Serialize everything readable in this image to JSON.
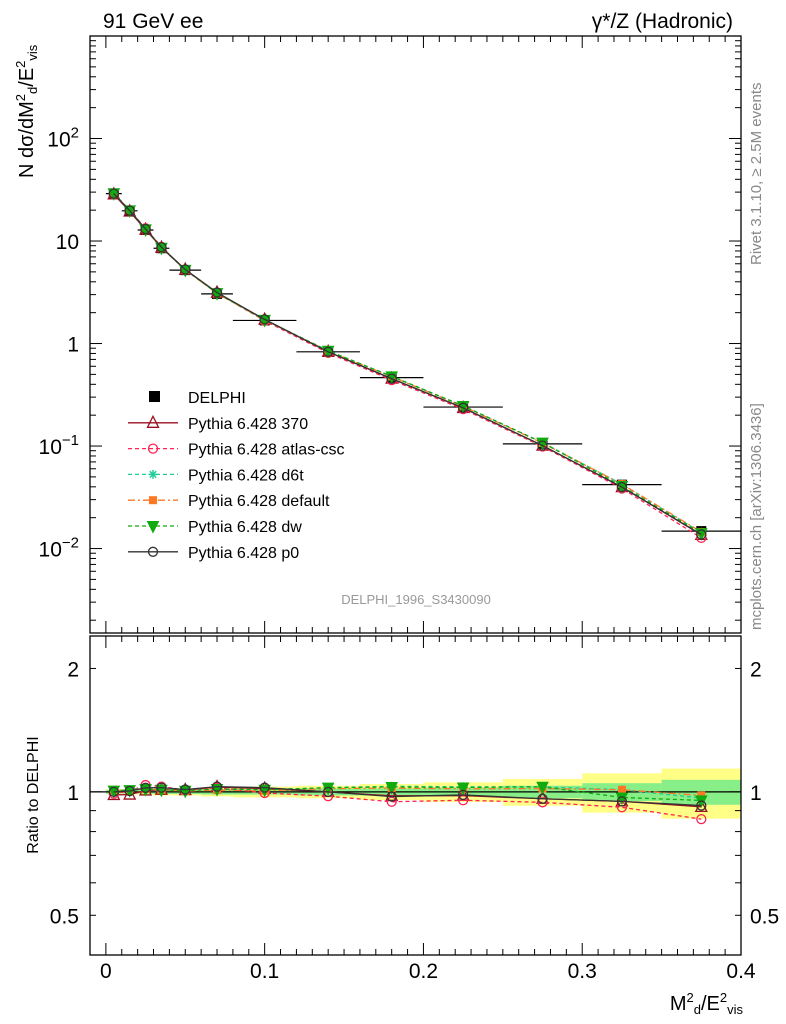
{
  "header": {
    "left_title": "91 GeV ee",
    "right_title": "γ*/Z (Hadronic)"
  },
  "side_text": {
    "rivet": "Rivet 3.1.10, ≥ 2.5M events",
    "mcplots": "mcplots.cern.ch [arXiv:1306.3436]"
  },
  "watermark": "DELPHI_1996_S3430090",
  "chart_data": [
    {
      "type": "line",
      "panel": "main",
      "ylabel": "N dσ/dM²d/E²vis",
      "yscale": "log",
      "ylim": [
        0.0015,
        1000
      ],
      "xlim": [
        -0.01,
        0.4
      ],
      "y_ticks": [
        {
          "value": 100,
          "label": "10",
          "sup": "2"
        },
        {
          "value": 10,
          "label": "10",
          "sup": ""
        },
        {
          "value": 1,
          "label": "1",
          "sup": ""
        },
        {
          "value": 0.1,
          "label": "10",
          "sup": "−1"
        },
        {
          "value": 0.01,
          "label": "10",
          "sup": "−2"
        }
      ],
      "x": [
        0.005,
        0.015,
        0.025,
        0.035,
        0.05,
        0.07,
        0.1,
        0.14,
        0.18,
        0.225,
        0.275,
        0.325,
        0.375
      ],
      "data": {
        "name": "DELPHI",
        "values": [
          29.0,
          19.7,
          12.8,
          8.5,
          5.2,
          3.05,
          1.68,
          0.83,
          0.465,
          0.24,
          0.105,
          0.042,
          0.0148
        ],
        "xerr": [
          0.005,
          0.005,
          0.005,
          0.005,
          0.01,
          0.01,
          0.02,
          0.02,
          0.02,
          0.025,
          0.025,
          0.025,
          0.025
        ]
      },
      "series": [
        {
          "name": "Pythia 6.428 370",
          "color": "#9b1020",
          "dash": "",
          "marker": "triangle-open",
          "values": [
            28.5,
            19.4,
            12.9,
            8.6,
            5.25,
            3.13,
            1.71,
            0.83,
            0.455,
            0.235,
            0.101,
            0.0398,
            0.0136
          ]
        },
        {
          "name": "Pythia 6.428 atlas-csc",
          "color": "#ff2255",
          "dash": "4,3",
          "marker": "circle-open",
          "values": [
            28.7,
            19.8,
            13.3,
            8.75,
            5.25,
            3.12,
            1.67,
            0.81,
            0.44,
            0.229,
            0.099,
            0.0385,
            0.0127
          ]
        },
        {
          "name": "Pythia 6.428 d6t",
          "color": "#22cc99",
          "dash": "4,3",
          "marker": "star",
          "values": [
            29.2,
            19.9,
            13.1,
            8.65,
            5.23,
            3.1,
            1.7,
            0.85,
            0.48,
            0.247,
            0.108,
            0.0425,
            0.0143
          ]
        },
        {
          "name": "Pythia 6.428 default",
          "color": "#ff7722",
          "dash": "7,3,2,3",
          "marker": "square-filled",
          "values": [
            29.3,
            19.9,
            13.0,
            8.6,
            5.22,
            3.08,
            1.69,
            0.845,
            0.475,
            0.244,
            0.107,
            0.0425,
            0.0145
          ]
        },
        {
          "name": "Pythia 6.428 dw",
          "color": "#11aa11",
          "dash": "4,3",
          "marker": "triangle-down-filled",
          "values": [
            29.2,
            19.9,
            13.0,
            8.6,
            5.23,
            3.1,
            1.7,
            0.85,
            0.478,
            0.246,
            0.108,
            0.0407,
            0.0141
          ]
        },
        {
          "name": "Pythia 6.428 p0",
          "color": "#333333",
          "dash": "",
          "marker": "circle-open",
          "values": [
            29.0,
            19.8,
            13.1,
            8.7,
            5.27,
            3.14,
            1.72,
            0.83,
            0.453,
            0.236,
            0.101,
            0.0398,
            0.0137
          ]
        }
      ]
    },
    {
      "type": "line",
      "panel": "ratio",
      "ylabel": "Ratio to DELPHI",
      "xlabel": "M²d/E²vis",
      "yscale": "log",
      "ylim": [
        0.4,
        2.4
      ],
      "xlim": [
        -0.01,
        0.4
      ],
      "y_ticks": [
        {
          "value": 2,
          "label": "2"
        },
        {
          "value": 1,
          "label": "1"
        },
        {
          "value": 0.5,
          "label": "0.5"
        }
      ],
      "x_ticks": [
        {
          "value": 0,
          "label": "0"
        },
        {
          "value": 0.1,
          "label": "0.1"
        },
        {
          "value": 0.2,
          "label": "0.2"
        },
        {
          "value": 0.3,
          "label": "0.3"
        },
        {
          "value": 0.4,
          "label": "0.4"
        }
      ],
      "x": [
        0.005,
        0.015,
        0.025,
        0.035,
        0.05,
        0.07,
        0.1,
        0.14,
        0.18,
        0.225,
        0.275,
        0.325,
        0.375
      ],
      "band_edges": [
        0.0,
        0.01,
        0.02,
        0.03,
        0.04,
        0.06,
        0.08,
        0.12,
        0.16,
        0.2,
        0.25,
        0.3,
        0.35,
        0.4
      ],
      "band_inner": [
        0.01,
        0.01,
        0.01,
        0.012,
        0.012,
        0.015,
        0.015,
        0.02,
        0.02,
        0.025,
        0.035,
        0.05,
        0.07
      ],
      "band_outer": [
        0.015,
        0.015,
        0.015,
        0.02,
        0.02,
        0.025,
        0.03,
        0.035,
        0.045,
        0.055,
        0.075,
        0.11,
        0.14
      ],
      "series": [
        {
          "name": "Pythia 6.428 370",
          "values": [
            0.983,
            0.985,
            1.008,
            1.012,
            1.01,
            1.027,
            1.018,
            1.0,
            0.978,
            0.979,
            0.962,
            0.948,
            0.919
          ]
        },
        {
          "name": "Pythia 6.428 atlas-csc",
          "values": [
            0.99,
            1.005,
            1.039,
            1.03,
            1.01,
            1.023,
            0.994,
            0.976,
            0.946,
            0.954,
            0.943,
            0.917,
            0.858
          ]
        },
        {
          "name": "Pythia 6.428 d6t",
          "values": [
            1.007,
            1.01,
            1.023,
            1.018,
            1.006,
            1.016,
            1.012,
            1.024,
            1.032,
            1.029,
            1.029,
            1.012,
            0.966
          ]
        },
        {
          "name": "Pythia 6.428 default",
          "values": [
            1.01,
            1.01,
            1.016,
            1.012,
            1.004,
            1.01,
            1.006,
            1.018,
            1.022,
            1.017,
            1.019,
            1.012,
            0.98
          ]
        },
        {
          "name": "Pythia 6.428 dw",
          "values": [
            1.007,
            1.01,
            1.016,
            1.012,
            1.006,
            1.016,
            1.012,
            1.024,
            1.028,
            1.025,
            1.029,
            0.969,
            0.953
          ]
        },
        {
          "name": "Pythia 6.428 p0",
          "values": [
            1.0,
            1.005,
            1.023,
            1.024,
            1.013,
            1.03,
            1.024,
            1.0,
            0.974,
            0.983,
            0.962,
            0.948,
            0.926
          ]
        }
      ]
    }
  ]
}
